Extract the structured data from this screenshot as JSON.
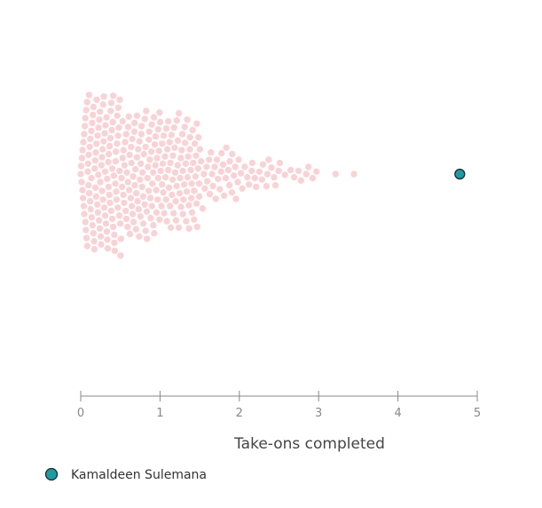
{
  "chart_data": {
    "type": "scatter",
    "subtype": "beeswarm",
    "xlabel": "Take-ons completed",
    "xlim": [
      0,
      5
    ],
    "x_ticks": [
      "0",
      "1",
      "2",
      "3",
      "4",
      "5"
    ],
    "grid": false,
    "series": [
      {
        "role": "comparison-population",
        "color": "#f8d3d6",
        "distribution_bins": [
          {
            "x_range": [
              0.0,
              0.5
            ],
            "count": 112
          },
          {
            "x_range": [
              0.5,
              1.0
            ],
            "count": 88
          },
          {
            "x_range": [
              1.0,
              1.5
            ],
            "count": 78
          },
          {
            "x_range": [
              1.5,
              2.0
            ],
            "count": 33
          },
          {
            "x_range": [
              2.0,
              2.5
            ],
            "count": 19
          },
          {
            "x_range": [
              2.5,
              3.0
            ],
            "count": 10
          },
          {
            "x_range": [
              3.0,
              3.5
            ],
            "count": 2
          }
        ]
      },
      {
        "name": "Kamaldeen Sulemana",
        "role": "highlighted-player",
        "color": "#1f9aa3",
        "x": [
          4.78
        ]
      }
    ],
    "legend": {
      "placement": "bottom-left",
      "entries": [
        "Kamaldeen Sulemana"
      ]
    }
  }
}
